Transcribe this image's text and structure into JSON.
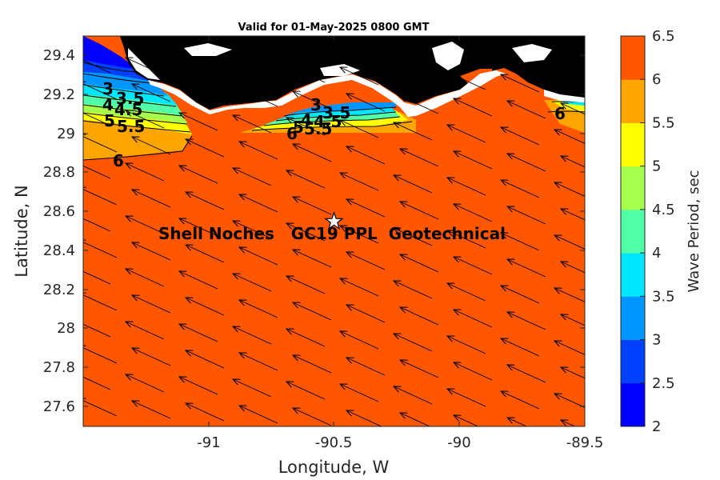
{
  "title": "Valid for 01-May-2025 0800 GMT",
  "xaxis": {
    "label": "Longitude, W",
    "ticks": [
      "-91",
      "-90.5",
      "-90",
      "-89.5"
    ]
  },
  "yaxis": {
    "label": "Latitude, N",
    "ticks": [
      "27.6",
      "27.8",
      "28",
      "28.2",
      "28.4",
      "28.6",
      "28.8",
      "29",
      "29.2",
      "29.4"
    ]
  },
  "annotation": "Shell Noches   GC19 PPL  Geotechnical",
  "station_icon": "star-icon",
  "colorbar": {
    "label": "Wave Period, sec",
    "ticks": [
      "2",
      "2.5",
      "3",
      "3.5",
      "4",
      "4.5",
      "5",
      "5.5",
      "6",
      "6.5"
    ],
    "colors": [
      "#0000ff",
      "#0041ff",
      "#0096ff",
      "#00e6ff",
      "#50ffa8",
      "#a6ff4c",
      "#ffff00",
      "#ffa500",
      "#ff5600"
    ]
  },
  "contour_labels": [
    "3",
    "3.5",
    "4",
    "4.5",
    "5",
    "5.5",
    "6",
    "3",
    "3.5",
    "4",
    "4.5",
    "5",
    "5.5",
    "6",
    "6",
    "6"
  ],
  "chart_data": {
    "type": "heatmap",
    "title": "Valid for 01-May-2025 0800 GMT",
    "xlabel": "Longitude, W",
    "ylabel": "Latitude, N",
    "xlim": [
      -91.5,
      -89.5
    ],
    "ylim": [
      27.5,
      29.5
    ],
    "clim": [
      2,
      6.5
    ],
    "grid": false,
    "colorbar_label": "Wave Period, sec",
    "station": {
      "lon": -90.5,
      "lat": 28.55
    },
    "dominant_value": 6.5,
    "arrow_direction": "toward north-west"
  }
}
